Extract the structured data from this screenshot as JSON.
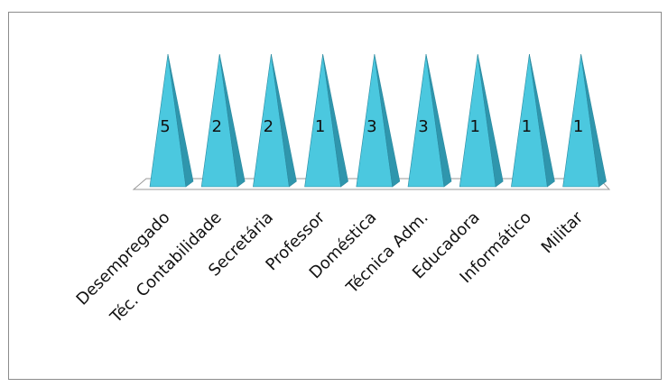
{
  "chart_data": {
    "type": "bar",
    "shape": "pyramid",
    "categories": [
      "Desempregado",
      "Téc. Contabilidade",
      "Secretária",
      "Professor",
      "Doméstica",
      "Técnica Adm.",
      "Educadora",
      "Informático",
      "Militar"
    ],
    "values": [
      5,
      2,
      2,
      1,
      3,
      3,
      1,
      1,
      1
    ],
    "data_labels": [
      "5",
      "2",
      "2",
      "1",
      "3",
      "3",
      "1",
      "1",
      "1"
    ],
    "title": "",
    "xlabel": "",
    "ylabel": "",
    "grid": false,
    "legend": "none",
    "colors": {
      "front": "#4bc8df",
      "side": "#2f96ad",
      "edge": "#2b8aa0",
      "floor_fill": "#ffffff",
      "floor_stroke": "#9a9a9a",
      "frame": "#8c8c8c"
    }
  }
}
